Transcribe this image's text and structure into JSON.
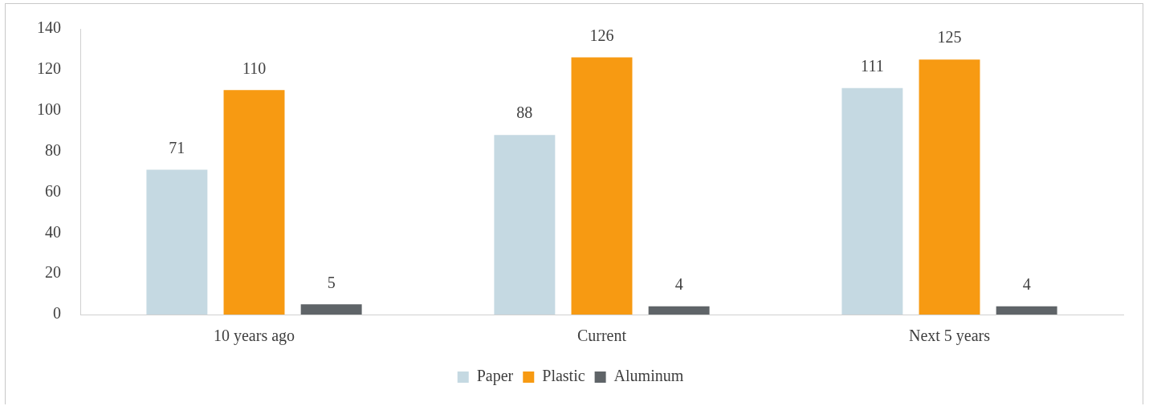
{
  "chart_data": {
    "type": "bar",
    "categories": [
      "10 years ago",
      "Current",
      "Next 5 years"
    ],
    "series": [
      {
        "name": "Paper",
        "color": "#c5d9e2",
        "values": [
          71,
          88,
          111
        ]
      },
      {
        "name": "Plastic",
        "color": "#f79a12",
        "values": [
          110,
          126,
          125
        ]
      },
      {
        "name": "Aluminum",
        "color": "#5f6468",
        "values": [
          5,
          4,
          4
        ]
      }
    ],
    "ylim": [
      0,
      140
    ],
    "yticks": [
      0,
      20,
      40,
      60,
      80,
      100,
      120,
      140
    ],
    "grid": false,
    "legend": "bottom",
    "data_labels": true
  }
}
